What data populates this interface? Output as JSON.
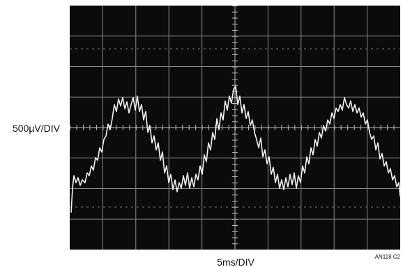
{
  "labels": {
    "vertical_scale": "500µV/DIV",
    "horizontal_scale": "5ms/DIV",
    "figure_id": "AN118 C2"
  }
}
